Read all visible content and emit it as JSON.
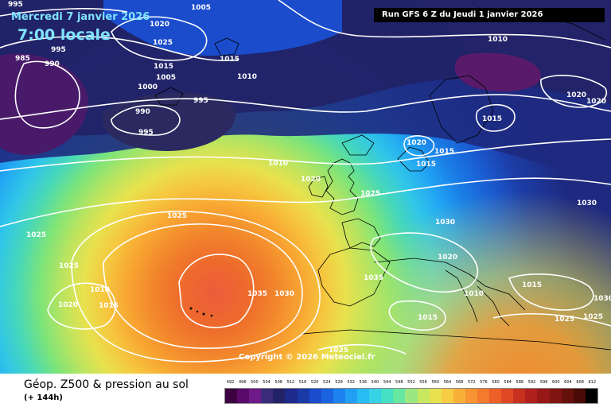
{
  "header": {
    "date_label": "Mercredi 7 janvier 2026",
    "time_label": "7:00 locale",
    "run_label": "Run GFS 6 Z du Jeudi 1 janvier 2026"
  },
  "footer": {
    "title": "Géop. Z500 & pression au sol",
    "subtitle": "(+ 144h)",
    "copyright": "Copyright © 2026 Meteociel.fr"
  },
  "legend": {
    "labels": [
      "492",
      "496",
      "500",
      "504",
      "508",
      "512",
      "516",
      "520",
      "524",
      "528",
      "532",
      "536",
      "540",
      "544",
      "548",
      "552",
      "556",
      "560",
      "564",
      "568",
      "572",
      "576",
      "580",
      "584",
      "588",
      "592",
      "596",
      "600",
      "604",
      "608",
      "612"
    ],
    "colors": [
      "#3d0040",
      "#5a0a6a",
      "#6e1a8a",
      "#3a2a78",
      "#222266",
      "#1e2a8c",
      "#1a3aa8",
      "#1a4ccc",
      "#1a64e0",
      "#1e82ee",
      "#22a0f4",
      "#28bcf2",
      "#36d2e6",
      "#46e0c4",
      "#66e8a0",
      "#9ce880",
      "#c8e860",
      "#e8e24e",
      "#f6cc42",
      "#f8b03a",
      "#f89432",
      "#f47a2e",
      "#ec6028",
      "#e04824",
      "#c83020",
      "#b0201c",
      "#981818",
      "#801410",
      "#66100c",
      "#4a0a08",
      "#000000"
    ]
  },
  "isobar_labels": [
    "995",
    "1005",
    "1020",
    "1025",
    "985",
    "990",
    "995",
    "1015",
    "1005",
    "1010",
    "1000",
    "995",
    "990",
    "995",
    "1010",
    "1015",
    "1020",
    "1025",
    "1025",
    "1025",
    "1010",
    "1015",
    "1020",
    "1035",
    "1030",
    "1035",
    "1025",
    "1020",
    "1015",
    "1015",
    "1030",
    "1025",
    "1010",
    "1015",
    "1015",
    "1010",
    "1030",
    "1020",
    "1020",
    "1020",
    "1015",
    "1025",
    "1025",
    "1030"
  ]
}
